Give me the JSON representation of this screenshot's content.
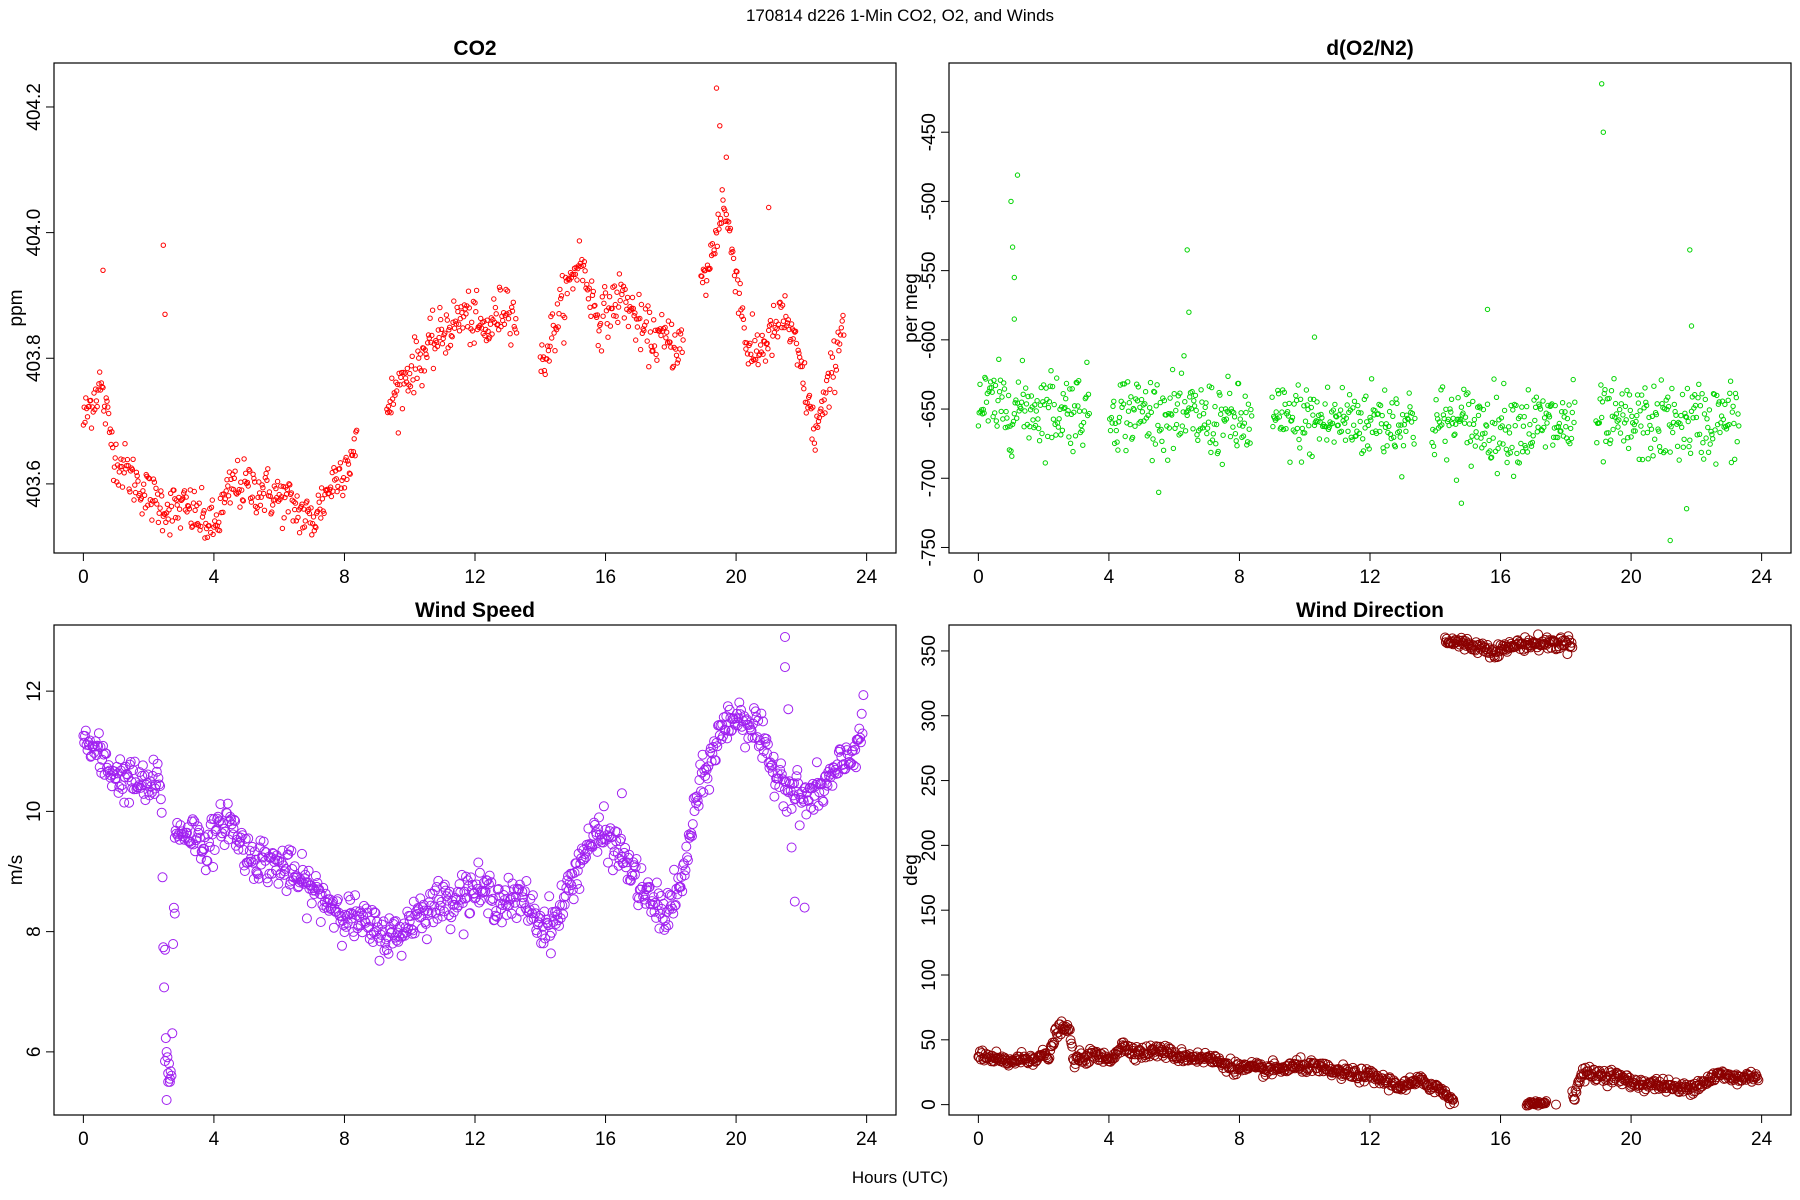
{
  "header": {
    "title": "170814   d226   1-Min CO2, O2, and Winds",
    "xlabel": "Hours (UTC)"
  },
  "chart_data": [
    {
      "id": "co2",
      "type": "scatter",
      "title": "CO2",
      "xlabel": "",
      "ylabel": "ppm",
      "xlim": [
        -0.9,
        24.9
      ],
      "ylim": [
        403.49,
        404.27
      ],
      "xticks": [
        0,
        4,
        8,
        12,
        16,
        20,
        24
      ],
      "yticks": [
        403.6,
        403.8,
        404.0,
        404.2
      ],
      "ytick_labels": [
        "403.6",
        "403.8",
        "404.0",
        "404.2"
      ],
      "color": "#ff0000",
      "marker_radius": 2.2,
      "x_range": [
        0,
        23.3
      ],
      "gaps": [
        [
          8.4,
          9.3
        ],
        [
          13.3,
          14.0
        ],
        [
          18.4,
          18.9
        ]
      ],
      "trend": [
        [
          0,
          403.7
        ],
        [
          0.5,
          403.76
        ],
        [
          1,
          403.64
        ],
        [
          2,
          403.58
        ],
        [
          2.6,
          403.56
        ],
        [
          3.2,
          403.56
        ],
        [
          4,
          403.53
        ],
        [
          4.6,
          403.6
        ],
        [
          5.5,
          403.59
        ],
        [
          6.3,
          403.57
        ],
        [
          7,
          403.54
        ],
        [
          7.6,
          403.6
        ],
        [
          8.3,
          403.65
        ],
        [
          9.4,
          403.73
        ],
        [
          10,
          403.78
        ],
        [
          11,
          403.84
        ],
        [
          11.7,
          403.87
        ],
        [
          12.3,
          403.84
        ],
        [
          13,
          403.89
        ],
        [
          14,
          403.78
        ],
        [
          14.5,
          403.86
        ],
        [
          15.2,
          403.96
        ],
        [
          15.8,
          403.86
        ],
        [
          16.5,
          403.9
        ],
        [
          17.2,
          403.84
        ],
        [
          18.3,
          403.82
        ],
        [
          19.2,
          403.95
        ],
        [
          19.6,
          404.05
        ],
        [
          20,
          403.94
        ],
        [
          20.4,
          403.8
        ],
        [
          21,
          403.83
        ],
        [
          21.5,
          403.87
        ],
        [
          22,
          403.78
        ],
        [
          22.4,
          403.68
        ],
        [
          22.8,
          403.74
        ],
        [
          23.3,
          403.87
        ]
      ],
      "noise": 0.02,
      "outliers": [
        [
          0.6,
          403.94
        ],
        [
          2.45,
          403.98
        ],
        [
          2.5,
          403.87
        ],
        [
          19.4,
          404.23
        ],
        [
          19.5,
          404.17
        ],
        [
          19.7,
          404.12
        ],
        [
          21,
          404.04
        ]
      ]
    },
    {
      "id": "o2",
      "type": "scatter",
      "title": "d(O2/N2)",
      "xlabel": "",
      "ylabel": "per meg",
      "xlim": [
        -0.9,
        24.9
      ],
      "ylim": [
        -754,
        -400
      ],
      "xticks": [
        0,
        4,
        8,
        12,
        16,
        20,
        24
      ],
      "yticks": [
        -750,
        -700,
        -650,
        -600,
        -550,
        -500,
        -450
      ],
      "ytick_labels": [
        "-750",
        "-700",
        "-650",
        "-600",
        "-550",
        "-500",
        "-450"
      ],
      "color": "#00d400",
      "marker_radius": 2.2,
      "x_range": [
        0,
        23.3
      ],
      "gaps": [
        [
          3.4,
          4.0
        ],
        [
          8.4,
          9.0
        ],
        [
          13.4,
          13.9
        ],
        [
          18.3,
          18.9
        ]
      ],
      "trend": [
        [
          0,
          -648
        ],
        [
          4,
          -650
        ],
        [
          8,
          -660
        ],
        [
          12,
          -658
        ],
        [
          16,
          -662
        ],
        [
          20,
          -661
        ],
        [
          23.3,
          -658
        ]
      ],
      "noise": 14,
      "outliers": [
        [
          1.0,
          -500
        ],
        [
          1.05,
          -533
        ],
        [
          1.1,
          -555
        ],
        [
          1.2,
          -481
        ],
        [
          1.1,
          -585
        ],
        [
          6.4,
          -535
        ],
        [
          6.45,
          -580
        ],
        [
          10.3,
          -598
        ],
        [
          15.6,
          -578
        ],
        [
          19.1,
          -415
        ],
        [
          19.15,
          -450
        ],
        [
          21.8,
          -535
        ],
        [
          21.85,
          -590
        ],
        [
          21.7,
          -722
        ],
        [
          21.2,
          -745
        ],
        [
          14.8,
          -718
        ]
      ]
    },
    {
      "id": "ws",
      "type": "scatter",
      "title": "Wind Speed",
      "xlabel": "",
      "ylabel": "m/s",
      "xlim": [
        -0.9,
        24.9
      ],
      "ylim": [
        4.95,
        13.1
      ],
      "xticks": [
        0,
        4,
        8,
        12,
        16,
        20,
        24
      ],
      "yticks": [
        6,
        8,
        10,
        12
      ],
      "ytick_labels": [
        "6",
        "8",
        "10",
        "12"
      ],
      "color": "#a020f0",
      "marker_radius": 4.5,
      "x_range": [
        0,
        23.9
      ],
      "gaps": [],
      "trend": [
        [
          0,
          11.2
        ],
        [
          0.5,
          10.9
        ],
        [
          1,
          10.6
        ],
        [
          2,
          10.4
        ],
        [
          2.3,
          10.5
        ],
        [
          2.4,
          10.0
        ],
        [
          2.5,
          6.0
        ],
        [
          2.7,
          5.6
        ],
        [
          2.8,
          9.6
        ],
        [
          3.2,
          9.7
        ],
        [
          3.8,
          9.4
        ],
        [
          4.4,
          9.9
        ],
        [
          5,
          9.3
        ],
        [
          6,
          9.1
        ],
        [
          7,
          8.7
        ],
        [
          8,
          8.3
        ],
        [
          9,
          8.0
        ],
        [
          9.6,
          7.9
        ],
        [
          10.2,
          8.3
        ],
        [
          11,
          8.5
        ],
        [
          12,
          8.7
        ],
        [
          13,
          8.5
        ],
        [
          13.6,
          8.5
        ],
        [
          14,
          8.1
        ],
        [
          14.5,
          8.2
        ],
        [
          15,
          8.9
        ],
        [
          15.5,
          9.5
        ],
        [
          16,
          9.6
        ],
        [
          16.6,
          9.2
        ],
        [
          17.2,
          8.6
        ],
        [
          17.8,
          8.3
        ],
        [
          18.3,
          8.7
        ],
        [
          18.8,
          10.2
        ],
        [
          19.5,
          11.3
        ],
        [
          20,
          11.6
        ],
        [
          20.6,
          11.4
        ],
        [
          21,
          10.8
        ],
        [
          21.5,
          10.5
        ],
        [
          22,
          10.2
        ],
        [
          22.5,
          10.3
        ],
        [
          23,
          10.6
        ],
        [
          23.5,
          10.9
        ],
        [
          23.9,
          11.4
        ]
      ],
      "noise": 0.18,
      "outliers": [
        [
          2.55,
          5.2
        ],
        [
          2.6,
          5.5
        ],
        [
          2.65,
          5.5
        ],
        [
          2.8,
          8.3
        ],
        [
          2.5,
          7.7
        ],
        [
          21.5,
          12.9
        ],
        [
          21.5,
          12.4
        ],
        [
          21.6,
          11.7
        ],
        [
          21.7,
          9.4
        ],
        [
          21.8,
          8.5
        ],
        [
          22.1,
          8.4
        ],
        [
          16.5,
          10.3
        ]
      ]
    },
    {
      "id": "wd",
      "type": "scatter",
      "title": "Wind Direction",
      "xlabel": "",
      "ylabel": "deg",
      "xlim": [
        -0.9,
        24.9
      ],
      "ylim": [
        -8,
        370
      ],
      "xticks": [
        0,
        4,
        8,
        12,
        16,
        20,
        24
      ],
      "yticks": [
        0,
        50,
        100,
        150,
        200,
        250,
        300,
        350
      ],
      "ytick_labels": [
        "0",
        "50",
        "100",
        "150",
        "200",
        "250",
        "300",
        "350"
      ],
      "color": "#8b0000",
      "marker_radius": 4.5,
      "x_range": [
        0,
        23.9
      ],
      "gaps": [
        [
          14.7,
          16.8
        ],
        [
          17.5,
          18.2
        ]
      ],
      "trend": [
        [
          0,
          38
        ],
        [
          0.8,
          33
        ],
        [
          1.6,
          36
        ],
        [
          2.2,
          38
        ],
        [
          2.4,
          58
        ],
        [
          2.8,
          58
        ],
        [
          2.9,
          34
        ],
        [
          3.5,
          38
        ],
        [
          4,
          35
        ],
        [
          4.4,
          45
        ],
        [
          5,
          40
        ],
        [
          5.6,
          42
        ],
        [
          6,
          38
        ],
        [
          7,
          36
        ],
        [
          8,
          28
        ],
        [
          9,
          27
        ],
        [
          10,
          30
        ],
        [
          11,
          25
        ],
        [
          12,
          22
        ],
        [
          13,
          14
        ],
        [
          13.5,
          18
        ],
        [
          14,
          14
        ],
        [
          14.6,
          3
        ],
        [
          18.2,
          5
        ],
        [
          18.5,
          24
        ],
        [
          19.5,
          22
        ],
        [
          20,
          17
        ],
        [
          21,
          15
        ],
        [
          21.5,
          12
        ],
        [
          22,
          15
        ],
        [
          22.7,
          23
        ],
        [
          23.3,
          20
        ],
        [
          23.9,
          23
        ]
      ],
      "noise": 2.5,
      "extra_clusters": [
        {
          "x_range": [
            14.3,
            18.2
          ],
          "trend": [
            [
              14.3,
              358
            ],
            [
              15,
              355
            ],
            [
              15.9,
              350
            ],
            [
              16.5,
              355
            ],
            [
              17.5,
              356
            ],
            [
              18.2,
              356
            ]
          ],
          "noise": 2.5
        },
        {
          "x_range": [
            16.8,
            17.4
          ],
          "trend": [
            [
              16.8,
              1
            ],
            [
              17.4,
              1
            ]
          ],
          "noise": 1.0
        }
      ],
      "outliers": [
        [
          17.7,
          0
        ],
        [
          16.9,
          0
        ]
      ]
    }
  ]
}
